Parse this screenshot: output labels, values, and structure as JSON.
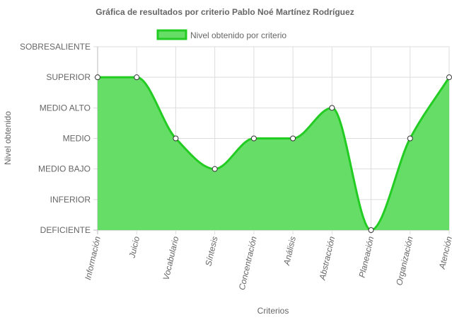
{
  "chart_data": {
    "type": "area",
    "title": "Gráfica de resultados por criterio Pablo Noé Martínez Rodríguez",
    "xlabel": "Criterios",
    "ylabel": "Nivel obtenido",
    "legend_position": "top",
    "grid": true,
    "y_levels": [
      "DEFICIENTE",
      "INFERIOR",
      "MEDIO BAJO",
      "MEDIO",
      "MEDIO ALTO",
      "SUPERIOR",
      "SOBRESALIENTE"
    ],
    "ylim": [
      0,
      6
    ],
    "categories": [
      "Información",
      "Juicio",
      "Vocabulario",
      "Síntesis",
      "Concentración",
      "Análisis",
      "Abstracción",
      "Planeación",
      "Organización",
      "Atención"
    ],
    "series": [
      {
        "name": "Nivel obtenido por criterio",
        "values": [
          5,
          5,
          3,
          2,
          3,
          3,
          4,
          0,
          3,
          5
        ],
        "fill_color": "#66dd66",
        "line_color": "#22cc22"
      }
    ]
  }
}
